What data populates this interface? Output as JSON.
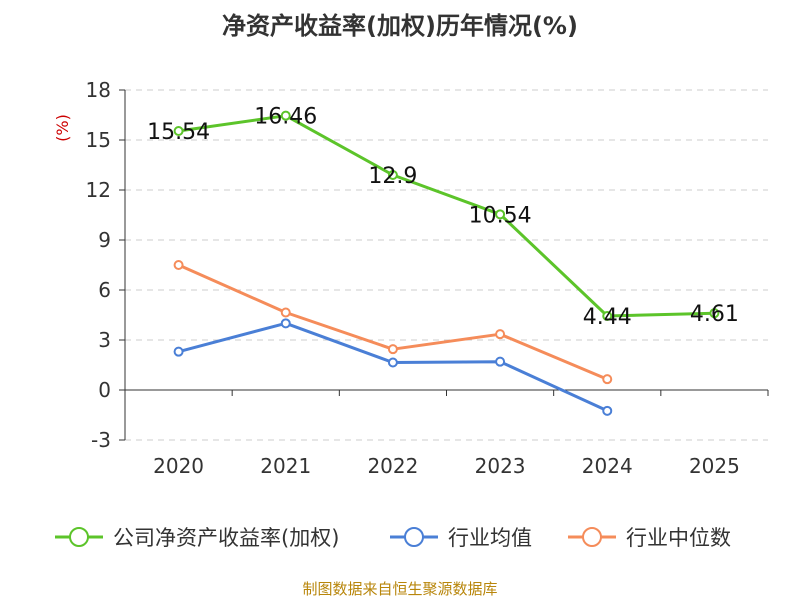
{
  "chart_data": {
    "type": "line",
    "title": "净资产收益率(加权)历年情况(%)",
    "ylabel": "(%)",
    "xlabel": "",
    "categories": [
      "2020",
      "2021",
      "2022",
      "2023",
      "2024",
      "2025"
    ],
    "ylim": [
      -3,
      18
    ],
    "yticks": [
      -3,
      0,
      3,
      6,
      9,
      12,
      15,
      18
    ],
    "grid": true,
    "legend_position": "bottom",
    "series": [
      {
        "name": "公司净资产收益率(加权)",
        "color": "#5cc42a",
        "values": [
          15.54,
          16.46,
          12.9,
          10.54,
          4.44,
          4.61
        ],
        "labels": [
          "15.54",
          "16.46",
          "12.9",
          "10.54",
          "4.44",
          "4.61"
        ],
        "show_labels": true
      },
      {
        "name": "行业均值",
        "color": "#4a7fd6",
        "values": [
          2.3,
          4.0,
          1.65,
          1.7,
          -1.25,
          null
        ],
        "show_labels": false
      },
      {
        "name": "行业中位数",
        "color": "#f58c5a",
        "values": [
          7.5,
          4.65,
          2.45,
          3.35,
          0.65,
          null
        ],
        "show_labels": false
      }
    ]
  },
  "source": "制图数据来自恒生聚源数据库"
}
